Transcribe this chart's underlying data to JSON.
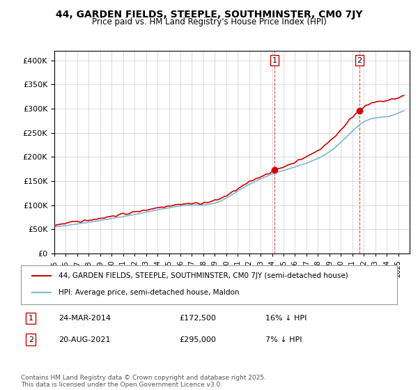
{
  "title": "44, GARDEN FIELDS, STEEPLE, SOUTHMINSTER, CM0 7JY",
  "subtitle": "Price paid vs. HM Land Registry's House Price Index (HPI)",
  "legend_line1": "44, GARDEN FIELDS, STEEPLE, SOUTHMINSTER, CM0 7JY (semi-detached house)",
  "legend_line2": "HPI: Average price, semi-detached house, Maldon",
  "transaction1_label": "1",
  "transaction1_date": "24-MAR-2014",
  "transaction1_price": "£172,500",
  "transaction1_hpi": "16% ↓ HPI",
  "transaction2_label": "2",
  "transaction2_date": "20-AUG-2021",
  "transaction2_price": "£295,000",
  "transaction2_hpi": "7% ↓ HPI",
  "footer": "Contains HM Land Registry data © Crown copyright and database right 2025.\nThis data is licensed under the Open Government Licence v3.0.",
  "hpi_color": "#7eb6d4",
  "price_color": "#cc0000",
  "marker_color": "#cc0000",
  "vline_color": "#cc0000",
  "background_color": "#ffffff",
  "plot_bg_color": "#ffffff",
  "grid_color": "#cccccc",
  "marker1_year": 2014.22,
  "marker1_value": 172500,
  "marker2_year": 2021.63,
  "marker2_value": 295000,
  "vline1_year": 2014.22,
  "vline2_year": 2021.63,
  "ylim_max": 420000,
  "ylim_min": 0,
  "xlim_min": 1995,
  "xlim_max": 2026
}
